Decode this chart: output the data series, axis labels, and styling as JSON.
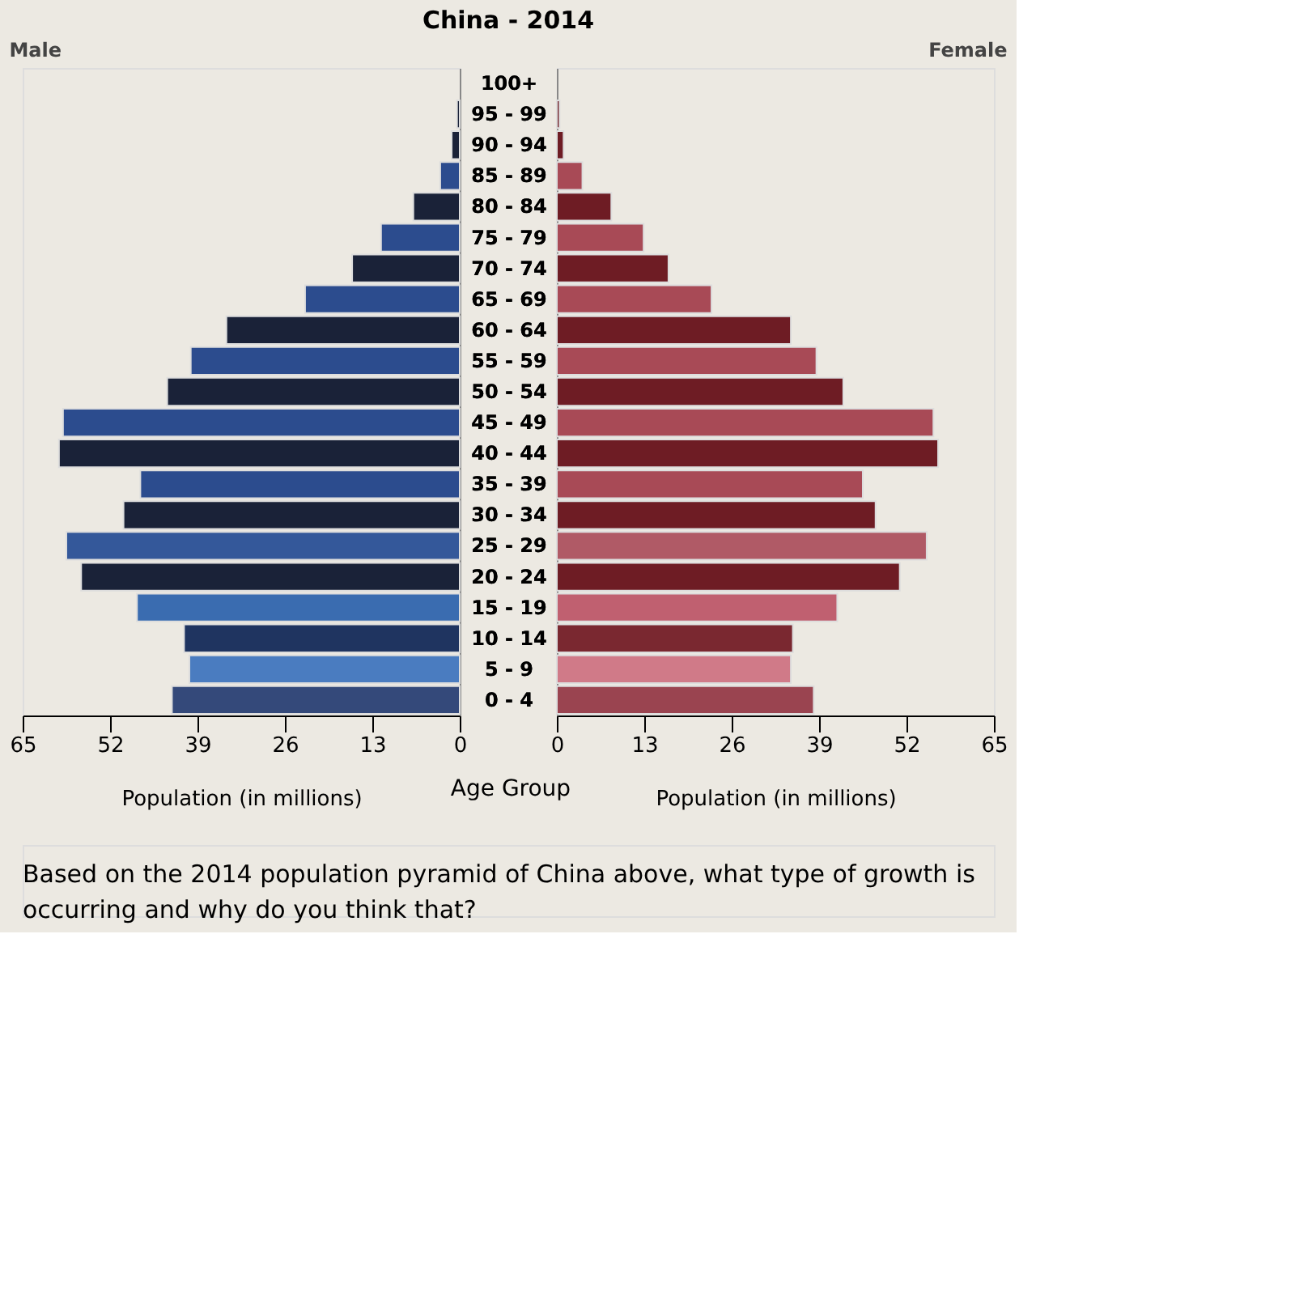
{
  "chart_data": [
    {
      "type": "bar",
      "orientation": "horizontal",
      "title": "Male",
      "xlabel": "Population (in millions)",
      "ylabel": "Age Group",
      "categories": [
        "100+",
        "95 - 99",
        "90 - 94",
        "85 - 89",
        "80 - 84",
        "75 - 79",
        "70 - 74",
        "65 - 69",
        "60 - 64",
        "55 - 59",
        "50 - 54",
        "45 - 49",
        "40 - 44",
        "35 - 39",
        "30 - 34",
        "25 - 29",
        "20 - 24",
        "15 - 19",
        "10 - 14",
        "5 - 9",
        "0 - 4"
      ],
      "values": [
        null,
        0.4,
        1.2,
        2.9,
        6.9,
        11.7,
        16,
        23,
        34.7,
        40,
        43.5,
        59,
        59.6,
        47.5,
        50,
        58.5,
        56.3,
        48,
        41,
        40.2,
        42.8
      ],
      "colors": [
        "#2c4c8e",
        "#1a2238",
        "#1a2238",
        "#2c4c8e",
        "#1a2238",
        "#2c4c8e",
        "#1a2238",
        "#2c4c8e",
        "#1a2238",
        "#2c4c8e",
        "#1a2238",
        "#2c4c8e",
        "#1a2238",
        "#2c4c8e",
        "#1a2238",
        "#34589a",
        "#1a2238",
        "#3a6cb0",
        "#1f3460",
        "#4a7cc0",
        "#34497a"
      ],
      "xlim": [
        65,
        0
      ],
      "xticks": [
        65,
        52,
        39,
        26,
        13,
        0
      ],
      "annotations": [
        "China - 2014",
        "Based on the 2014 population pyramid of China above, what type of growth is occurring and why do you think that?"
      ]
    },
    {
      "type": "bar",
      "orientation": "horizontal",
      "title": "Female",
      "xlabel": "Population (in millions)",
      "categories": [
        "100+",
        "95 - 99",
        "90 - 94",
        "85 - 89",
        "80 - 84",
        "75 - 79",
        "70 - 74",
        "65 - 69",
        "60 - 64",
        "55 - 59",
        "50 - 54",
        "45 - 49",
        "40 - 44",
        "35 - 39",
        "30 - 34",
        "25 - 29",
        "20 - 24",
        "15 - 19",
        "10 - 14",
        "5 - 9",
        "0 - 4"
      ],
      "values": [
        null,
        0.4,
        1,
        3.8,
        8.1,
        12.9,
        16.6,
        23,
        34.8,
        38.6,
        42.6,
        56,
        56.7,
        45.5,
        47.4,
        55,
        51,
        41.7,
        35.1,
        34.8,
        38.2
      ],
      "colors": [
        "#a84a56",
        "#6e1c24",
        "#6e1c24",
        "#a84a56",
        "#6e1c24",
        "#a84a56",
        "#6e1c24",
        "#a84a56",
        "#6e1c24",
        "#a84a56",
        "#6e1c24",
        "#a84a56",
        "#6e1c24",
        "#a84a56",
        "#6e1c24",
        "#b05a66",
        "#6e1c24",
        "#c06070",
        "#7a2830",
        "#d07a88",
        "#9a4450"
      ],
      "xlim": [
        0,
        65
      ],
      "xticks": [
        0,
        13,
        26,
        39,
        52,
        65
      ]
    }
  ]
}
